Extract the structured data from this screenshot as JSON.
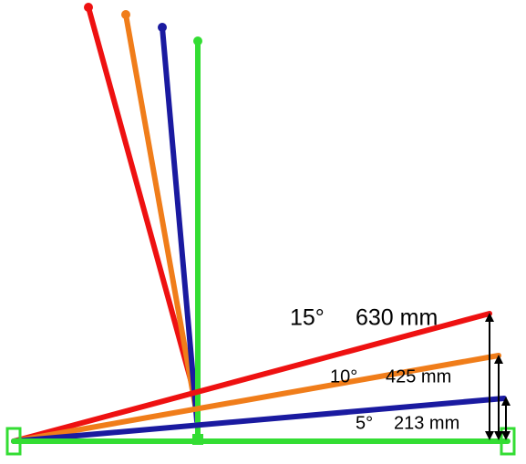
{
  "labels": [
    {
      "angle": "15°",
      "height": "630 mm"
    },
    {
      "angle": "10°",
      "height": "425 mm"
    },
    {
      "angle": "5°",
      "height": "213 mm"
    }
  ]
}
